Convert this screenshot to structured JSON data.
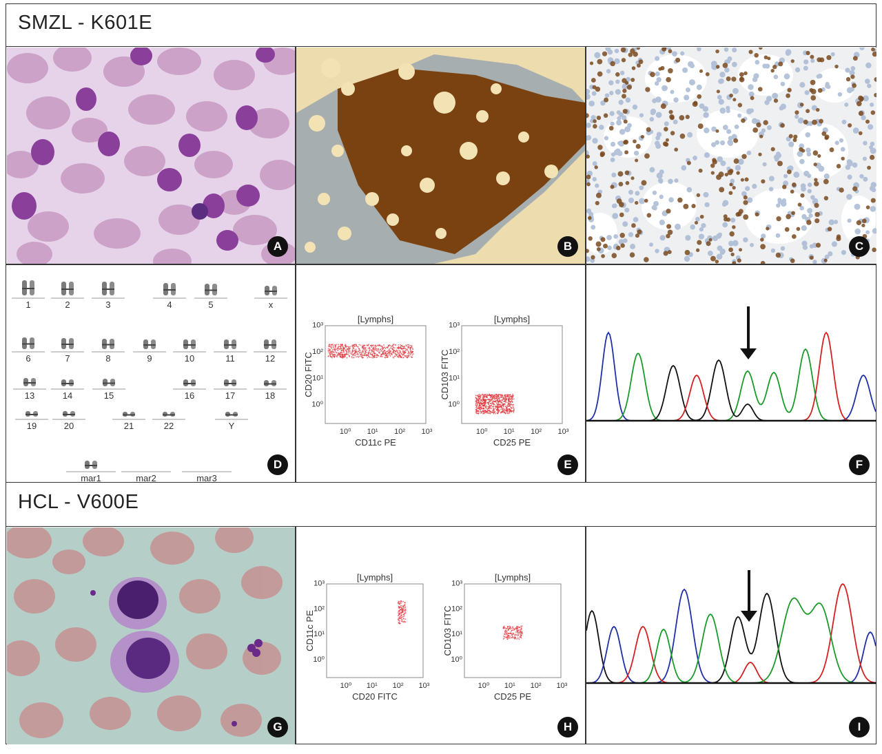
{
  "sections": [
    {
      "title": "SMZL - K601E"
    },
    {
      "title": "HCL - V600E"
    }
  ],
  "panel_letters": [
    "A",
    "B",
    "C",
    "D",
    "E",
    "F",
    "G",
    "H",
    "I"
  ],
  "karyotype": {
    "labels": [
      "1",
      "2",
      "3",
      "4",
      "5",
      "x",
      "6",
      "7",
      "8",
      "9",
      "10",
      "11",
      "12",
      "13",
      "14",
      "15",
      "16",
      "17",
      "18",
      "19",
      "20",
      "21",
      "22",
      "Y",
      "mar1",
      "mar2",
      "mar3"
    ]
  },
  "flow_e": [
    {
      "gate": "[Lymphs]",
      "ylabel": "CD20 FITC",
      "xlabel": "CD11c PE",
      "ticks": [
        "10⁰",
        "10¹",
        "10²",
        "10³"
      ]
    },
    {
      "gate": "[Lymphs]",
      "ylabel": "CD103 FITC",
      "xlabel": "CD25 PE",
      "ticks": [
        "10⁰",
        "10¹",
        "10²",
        "10³"
      ]
    }
  ],
  "flow_h": [
    {
      "gate": "[Lymphs]",
      "ylabel": "CD11c PE",
      "xlabel": "CD20 FITC",
      "ticks": [
        "10⁰",
        "10¹",
        "10²",
        "10³"
      ]
    },
    {
      "gate": "[Lymphs]",
      "ylabel": "CD103 FITC",
      "xlabel": "CD25 PE",
      "ticks": [
        "10⁰",
        "10¹",
        "10²",
        "10³"
      ]
    }
  ],
  "colors": {
    "blue": "#1f2fa8",
    "green": "#1a9a2a",
    "black": "#111111",
    "red": "#d42020",
    "flow": "#e0353a"
  }
}
